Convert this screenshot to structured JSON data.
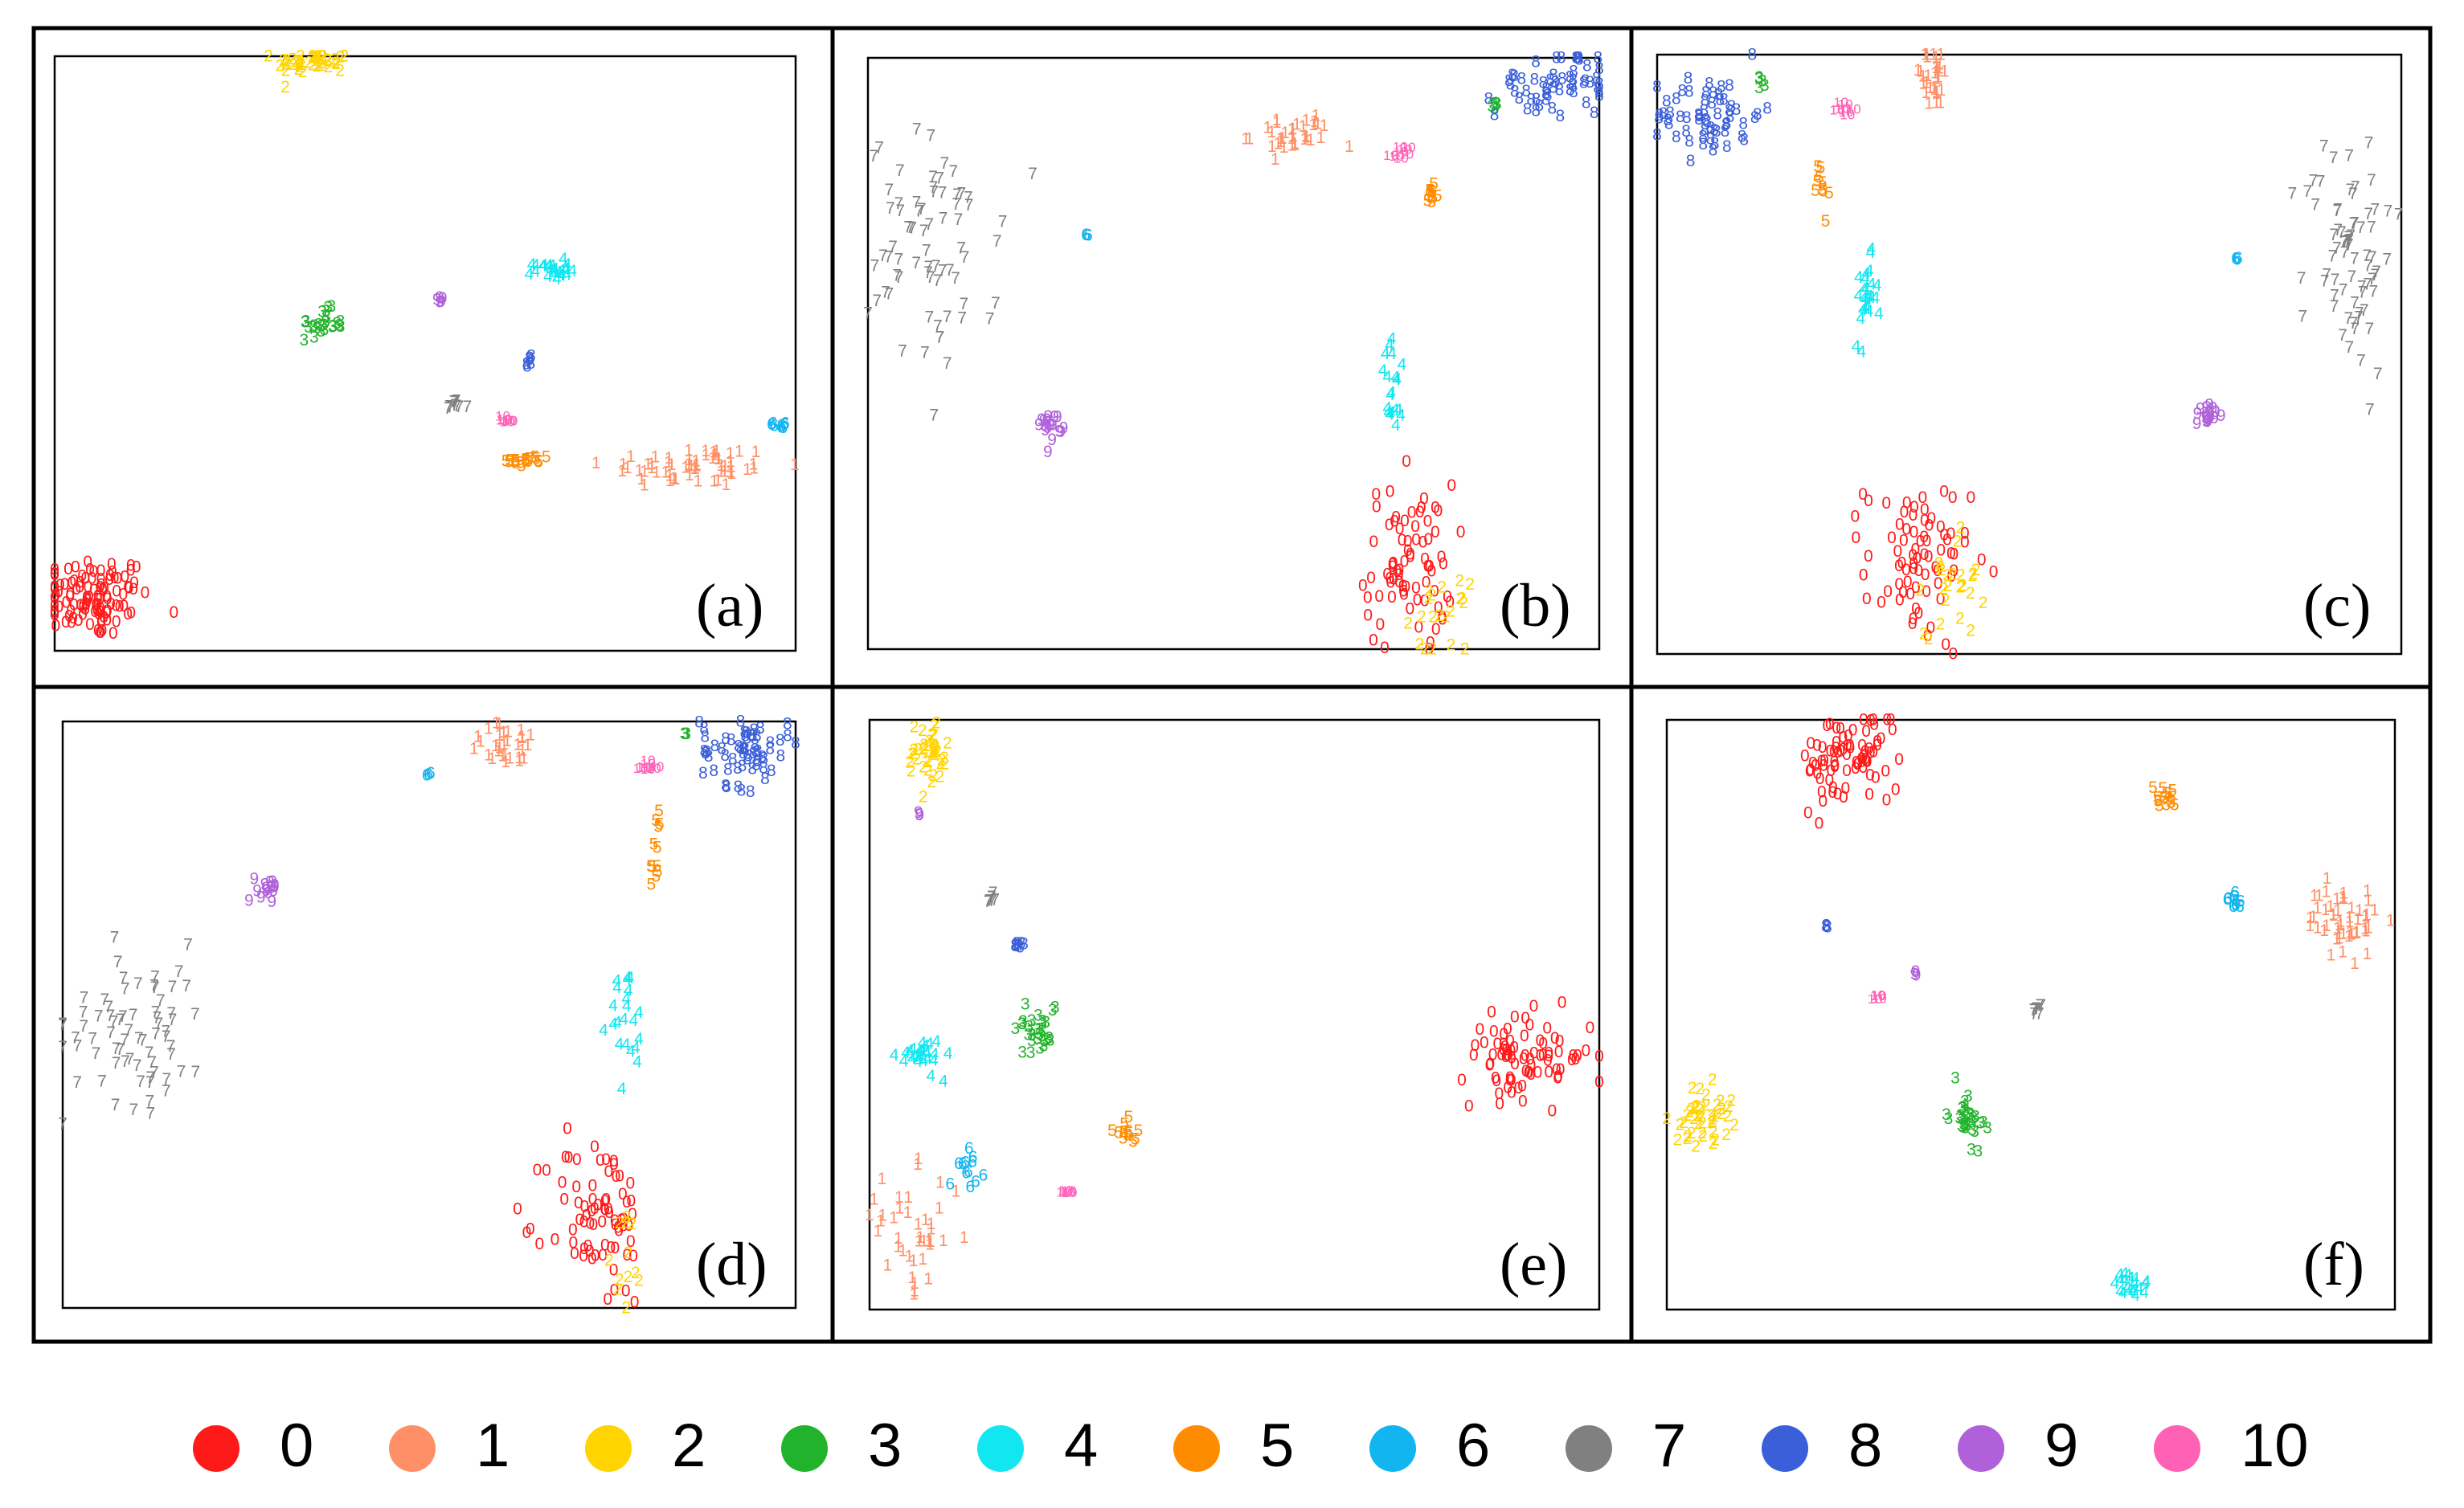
{
  "figure": {
    "class_labels": [
      "0",
      "1",
      "2",
      "3",
      "4",
      "5",
      "6",
      "7",
      "8",
      "9",
      "10"
    ],
    "class_colors": [
      "#ff1a1a",
      "#ff8f66",
      "#ffd400",
      "#22b32c",
      "#12e6f0",
      "#ff8c00",
      "#12b5f0",
      "#808080",
      "#3b5fd9",
      "#b061d9",
      "#ff61b5"
    ],
    "marker": "digit glyph = class label"
  },
  "chart_data": [
    {
      "type": "scatter",
      "panel_label": "(a)",
      "xlim": [
        0,
        1
      ],
      "ylim": [
        0,
        1
      ],
      "series": [
        {
          "class": "0",
          "clusters": [
            {
              "x": 0.05,
              "y": 0.09,
              "n": 110,
              "sx": 0.04,
              "sy": 0.035
            }
          ]
        },
        {
          "class": "1",
          "clusters": [
            {
              "x": 0.86,
              "y": 0.31,
              "n": 60,
              "sx": 0.06,
              "sy": 0.018
            }
          ]
        },
        {
          "class": "2",
          "clusters": [
            {
              "x": 0.35,
              "y": 0.99,
              "n": 45,
              "sx": 0.025,
              "sy": 0.01
            }
          ]
        },
        {
          "class": "3",
          "clusters": [
            {
              "x": 0.36,
              "y": 0.55,
              "n": 25,
              "sx": 0.015,
              "sy": 0.012
            }
          ]
        },
        {
          "class": "4",
          "clusters": [
            {
              "x": 0.67,
              "y": 0.64,
              "n": 25,
              "sx": 0.012,
              "sy": 0.008
            }
          ]
        },
        {
          "class": "5",
          "clusters": [
            {
              "x": 0.64,
              "y": 0.32,
              "n": 18,
              "sx": 0.015,
              "sy": 0.006
            }
          ]
        },
        {
          "class": "6",
          "clusters": [
            {
              "x": 0.98,
              "y": 0.38,
              "n": 8,
              "sx": 0.005,
              "sy": 0.005
            }
          ]
        },
        {
          "class": "7",
          "clusters": [
            {
              "x": 0.54,
              "y": 0.41,
              "n": 10,
              "sx": 0.008,
              "sy": 0.005
            }
          ]
        },
        {
          "class": "8",
          "clusters": [
            {
              "x": 0.64,
              "y": 0.49,
              "n": 6,
              "sx": 0.003,
              "sy": 0.005
            }
          ]
        },
        {
          "class": "9",
          "clusters": [
            {
              "x": 0.52,
              "y": 0.59,
              "n": 5,
              "sx": 0.003,
              "sy": 0.004
            }
          ]
        },
        {
          "class": "10",
          "clusters": [
            {
              "x": 0.61,
              "y": 0.39,
              "n": 6,
              "sx": 0.006,
              "sy": 0.003
            }
          ]
        }
      ]
    },
    {
      "type": "scatter",
      "panel_label": "(b)",
      "xlim": [
        0,
        1
      ],
      "ylim": [
        0,
        1
      ],
      "series": [
        {
          "class": "0",
          "clusters": [
            {
              "x": 0.74,
              "y": 0.14,
              "n": 75,
              "sx": 0.03,
              "sy": 0.07
            }
          ]
        },
        {
          "class": "1",
          "clusters": [
            {
              "x": 0.58,
              "y": 0.87,
              "n": 35,
              "sx": 0.028,
              "sy": 0.018
            }
          ]
        },
        {
          "class": "2",
          "clusters": [
            {
              "x": 0.78,
              "y": 0.05,
              "n": 20,
              "sx": 0.02,
              "sy": 0.03
            }
          ]
        },
        {
          "class": "3",
          "clusters": [
            {
              "x": 0.86,
              "y": 0.92,
              "n": 5,
              "sx": 0.003,
              "sy": 0.003
            }
          ]
        },
        {
          "class": "4",
          "clusters": [
            {
              "x": 0.72,
              "y": 0.44,
              "n": 20,
              "sx": 0.01,
              "sy": 0.04
            }
          ]
        },
        {
          "class": "5",
          "clusters": [
            {
              "x": 0.77,
              "y": 0.77,
              "n": 10,
              "sx": 0.005,
              "sy": 0.015
            }
          ]
        },
        {
          "class": "6",
          "clusters": [
            {
              "x": 0.3,
              "y": 0.7,
              "n": 3,
              "sx": 0.002,
              "sy": 0.002
            }
          ]
        },
        {
          "class": "7",
          "clusters": [
            {
              "x": 0.09,
              "y": 0.67,
              "n": 70,
              "sx": 0.045,
              "sy": 0.1
            }
          ]
        },
        {
          "class": "8",
          "clusters": [
            {
              "x": 0.94,
              "y": 0.96,
              "n": 55,
              "sx": 0.04,
              "sy": 0.03
            }
          ]
        },
        {
          "class": "9",
          "clusters": [
            {
              "x": 0.25,
              "y": 0.38,
              "n": 18,
              "sx": 0.008,
              "sy": 0.012
            }
          ]
        },
        {
          "class": "10",
          "clusters": [
            {
              "x": 0.73,
              "y": 0.84,
              "n": 8,
              "sx": 0.006,
              "sy": 0.006
            }
          ]
        }
      ]
    },
    {
      "type": "scatter",
      "panel_label": "(c)",
      "xlim": [
        0,
        1
      ],
      "ylim": [
        0,
        1
      ],
      "series": [
        {
          "class": "0",
          "clusters": [
            {
              "x": 0.35,
              "y": 0.15,
              "n": 75,
              "sx": 0.035,
              "sy": 0.07
            }
          ]
        },
        {
          "class": "1",
          "clusters": [
            {
              "x": 0.37,
              "y": 0.96,
              "n": 30,
              "sx": 0.015,
              "sy": 0.025
            }
          ]
        },
        {
          "class": "2",
          "clusters": [
            {
              "x": 0.4,
              "y": 0.13,
              "n": 25,
              "sx": 0.02,
              "sy": 0.05
            }
          ]
        },
        {
          "class": "3",
          "clusters": [
            {
              "x": 0.14,
              "y": 0.95,
              "n": 5,
              "sx": 0.003,
              "sy": 0.005
            }
          ]
        },
        {
          "class": "4",
          "clusters": [
            {
              "x": 0.28,
              "y": 0.59,
              "n": 25,
              "sx": 0.008,
              "sy": 0.035
            }
          ]
        },
        {
          "class": "5",
          "clusters": [
            {
              "x": 0.22,
              "y": 0.77,
              "n": 10,
              "sx": 0.005,
              "sy": 0.03
            }
          ]
        },
        {
          "class": "6",
          "clusters": [
            {
              "x": 0.78,
              "y": 0.66,
              "n": 3,
              "sx": 0.002,
              "sy": 0.002
            }
          ]
        },
        {
          "class": "7",
          "clusters": [
            {
              "x": 0.93,
              "y": 0.67,
              "n": 70,
              "sx": 0.03,
              "sy": 0.1
            }
          ]
        },
        {
          "class": "8",
          "clusters": [
            {
              "x": 0.07,
              "y": 0.9,
              "n": 60,
              "sx": 0.035,
              "sy": 0.035
            }
          ]
        },
        {
          "class": "9",
          "clusters": [
            {
              "x": 0.74,
              "y": 0.4,
              "n": 18,
              "sx": 0.008,
              "sy": 0.01
            }
          ]
        },
        {
          "class": "10",
          "clusters": [
            {
              "x": 0.25,
              "y": 0.91,
              "n": 8,
              "sx": 0.006,
              "sy": 0.006
            }
          ]
        }
      ]
    },
    {
      "type": "scatter",
      "panel_label": "(d)",
      "xlim": [
        0,
        1
      ],
      "ylim": [
        0,
        1
      ],
      "series": [
        {
          "class": "0",
          "clusters": [
            {
              "x": 0.73,
              "y": 0.15,
              "n": 75,
              "sx": 0.035,
              "sy": 0.075
            }
          ]
        },
        {
          "class": "1",
          "clusters": [
            {
              "x": 0.61,
              "y": 0.96,
              "n": 30,
              "sx": 0.03,
              "sy": 0.018
            }
          ]
        },
        {
          "class": "2",
          "clusters": [
            {
              "x": 0.77,
              "y": 0.09,
              "n": 12,
              "sx": 0.01,
              "sy": 0.05
            }
          ]
        },
        {
          "class": "3",
          "clusters": [
            {
              "x": 0.85,
              "y": 0.98,
              "n": 3,
              "sx": 0.002,
              "sy": 0.002
            }
          ]
        },
        {
          "class": "4",
          "clusters": [
            {
              "x": 0.77,
              "y": 0.48,
              "n": 22,
              "sx": 0.012,
              "sy": 0.05
            }
          ]
        },
        {
          "class": "5",
          "clusters": [
            {
              "x": 0.81,
              "y": 0.78,
              "n": 12,
              "sx": 0.005,
              "sy": 0.04
            }
          ]
        },
        {
          "class": "6",
          "clusters": [
            {
              "x": 0.5,
              "y": 0.91,
              "n": 3,
              "sx": 0.002,
              "sy": 0.002
            }
          ]
        },
        {
          "class": "7",
          "clusters": [
            {
              "x": 0.1,
              "y": 0.48,
              "n": 70,
              "sx": 0.05,
              "sy": 0.07
            }
          ]
        },
        {
          "class": "8",
          "clusters": [
            {
              "x": 0.93,
              "y": 0.95,
              "n": 60,
              "sx": 0.03,
              "sy": 0.03
            }
          ]
        },
        {
          "class": "9",
          "clusters": [
            {
              "x": 0.28,
              "y": 0.72,
              "n": 16,
              "sx": 0.008,
              "sy": 0.012
            }
          ]
        },
        {
          "class": "10",
          "clusters": [
            {
              "x": 0.8,
              "y": 0.92,
              "n": 8,
              "sx": 0.006,
              "sy": 0.006
            }
          ]
        }
      ]
    },
    {
      "type": "scatter",
      "panel_label": "(e)",
      "xlim": [
        0,
        1
      ],
      "ylim": [
        0,
        1
      ],
      "series": [
        {
          "class": "0",
          "clusters": [
            {
              "x": 0.9,
              "y": 0.43,
              "n": 80,
              "sx": 0.045,
              "sy": 0.035
            }
          ]
        },
        {
          "class": "1",
          "clusters": [
            {
              "x": 0.06,
              "y": 0.13,
              "n": 40,
              "sx": 0.035,
              "sy": 0.05
            }
          ]
        },
        {
          "class": "2",
          "clusters": [
            {
              "x": 0.08,
              "y": 0.94,
              "n": 40,
              "sx": 0.015,
              "sy": 0.03
            }
          ]
        },
        {
          "class": "3",
          "clusters": [
            {
              "x": 0.23,
              "y": 0.48,
              "n": 30,
              "sx": 0.015,
              "sy": 0.025
            }
          ]
        },
        {
          "class": "4",
          "clusters": [
            {
              "x": 0.07,
              "y": 0.43,
              "n": 25,
              "sx": 0.015,
              "sy": 0.015
            }
          ]
        },
        {
          "class": "5",
          "clusters": [
            {
              "x": 0.35,
              "y": 0.3,
              "n": 12,
              "sx": 0.008,
              "sy": 0.01
            }
          ]
        },
        {
          "class": "6",
          "clusters": [
            {
              "x": 0.14,
              "y": 0.24,
              "n": 12,
              "sx": 0.01,
              "sy": 0.015
            }
          ]
        },
        {
          "class": "7",
          "clusters": [
            {
              "x": 0.17,
              "y": 0.7,
              "n": 8,
              "sx": 0.004,
              "sy": 0.006
            }
          ]
        },
        {
          "class": "8",
          "clusters": [
            {
              "x": 0.2,
              "y": 0.62,
              "n": 8,
              "sx": 0.004,
              "sy": 0.005
            }
          ]
        },
        {
          "class": "9",
          "clusters": [
            {
              "x": 0.07,
              "y": 0.84,
              "n": 3,
              "sx": 0.002,
              "sy": 0.002
            }
          ]
        },
        {
          "class": "10",
          "clusters": [
            {
              "x": 0.27,
              "y": 0.2,
              "n": 5,
              "sx": 0.003,
              "sy": 0.003
            }
          ]
        }
      ]
    },
    {
      "type": "scatter",
      "panel_label": "(f)",
      "xlim": [
        0,
        1
      ],
      "ylim": [
        0,
        1
      ],
      "series": [
        {
          "class": "0",
          "clusters": [
            {
              "x": 0.25,
              "y": 0.93,
              "n": 80,
              "sx": 0.035,
              "sy": 0.04
            }
          ]
        },
        {
          "class": "1",
          "clusters": [
            {
              "x": 0.93,
              "y": 0.66,
              "n": 50,
              "sx": 0.025,
              "sy": 0.03
            }
          ]
        },
        {
          "class": "2",
          "clusters": [
            {
              "x": 0.05,
              "y": 0.33,
              "n": 45,
              "sx": 0.02,
              "sy": 0.025
            }
          ]
        },
        {
          "class": "3",
          "clusters": [
            {
              "x": 0.41,
              "y": 0.33,
              "n": 30,
              "sx": 0.012,
              "sy": 0.025
            }
          ]
        },
        {
          "class": "4",
          "clusters": [
            {
              "x": 0.64,
              "y": 0.04,
              "n": 20,
              "sx": 0.012,
              "sy": 0.012
            }
          ]
        },
        {
          "class": "5",
          "clusters": [
            {
              "x": 0.68,
              "y": 0.87,
              "n": 15,
              "sx": 0.01,
              "sy": 0.01
            }
          ]
        },
        {
          "class": "6",
          "clusters": [
            {
              "x": 0.78,
              "y": 0.69,
              "n": 10,
              "sx": 0.005,
              "sy": 0.006
            }
          ]
        },
        {
          "class": "7",
          "clusters": [
            {
              "x": 0.51,
              "y": 0.51,
              "n": 8,
              "sx": 0.004,
              "sy": 0.005
            }
          ]
        },
        {
          "class": "8",
          "clusters": [
            {
              "x": 0.22,
              "y": 0.65,
              "n": 4,
              "sx": 0.002,
              "sy": 0.003
            }
          ]
        },
        {
          "class": "9",
          "clusters": [
            {
              "x": 0.34,
              "y": 0.57,
              "n": 3,
              "sx": 0.002,
              "sy": 0.002
            }
          ]
        },
        {
          "class": "10",
          "clusters": [
            {
              "x": 0.29,
              "y": 0.53,
              "n": 4,
              "sx": 0.003,
              "sy": 0.002
            }
          ]
        }
      ]
    }
  ]
}
